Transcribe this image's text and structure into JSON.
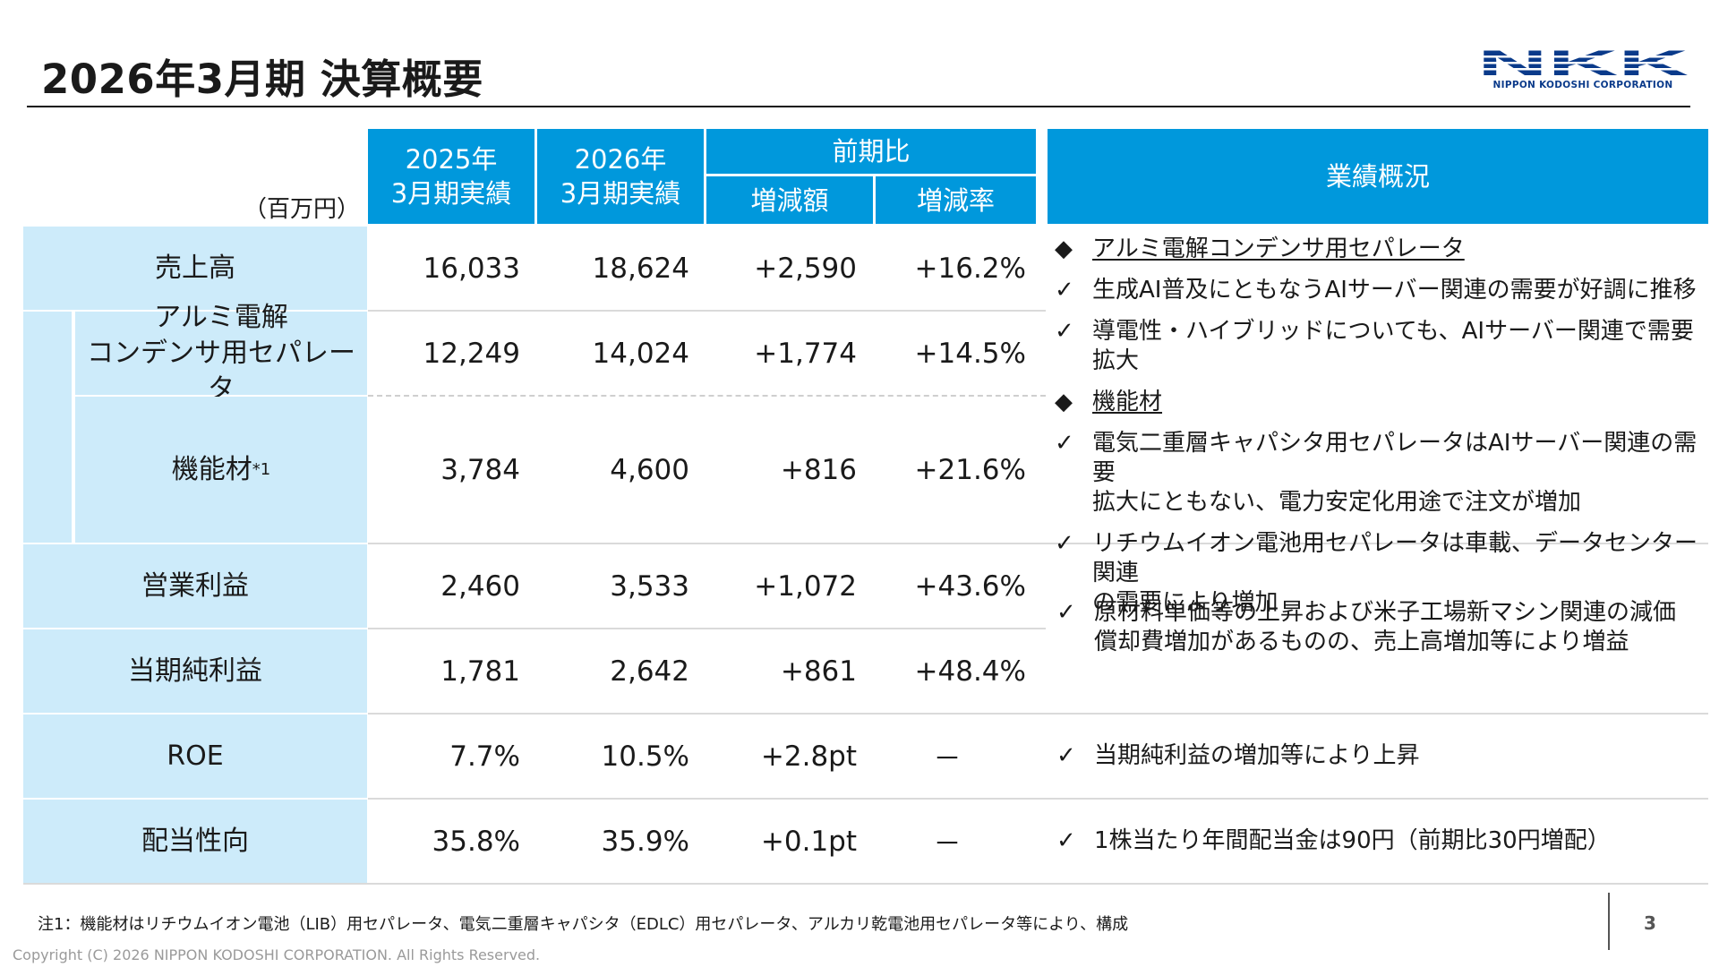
{
  "title": "2026年3月期 決算概要",
  "logo": {
    "mark": "NKK",
    "sub": "NIPPON KODOSHI CORPORATION"
  },
  "unit": "（百万円）",
  "header": {
    "fy2025": "2025年\n3月期実績",
    "fy2026": "2026年\n3月期実績",
    "yoy": "前期比",
    "change": "増減額",
    "rate": "増減率",
    "overview": "業績概況"
  },
  "rows": [
    {
      "label": "売上高",
      "fy2025": "16,033",
      "fy2026": "18,624",
      "change": "+2,590",
      "rate": "+16.2%"
    },
    {
      "label": "アルミ電解\nコンデンサ用セパレータ",
      "fy2025": "12,249",
      "fy2026": "14,024",
      "change": "+1,774",
      "rate": "+14.5%"
    },
    {
      "label": "機能材",
      "label_sup": "*1",
      "fy2025": "3,784",
      "fy2026": "4,600",
      "change": "+816",
      "rate": "+21.6%"
    },
    {
      "label": "営業利益",
      "fy2025": "2,460",
      "fy2026": "3,533",
      "change": "+1,072",
      "rate": "+43.6%"
    },
    {
      "label": "当期純利益",
      "fy2025": "1,781",
      "fy2026": "2,642",
      "change": "+861",
      "rate": "+48.4%"
    },
    {
      "label": "ROE",
      "fy2025": "7.7%",
      "fy2026": "10.5%",
      "change": "+2.8pt",
      "rate": "－"
    },
    {
      "label": "配当性向",
      "fy2025": "35.8%",
      "fy2026": "35.9%",
      "change": "+0.1pt",
      "rate": "－"
    }
  ],
  "markers": {
    "diamond": "◆",
    "check": "✓"
  },
  "overview": {
    "sales_notes": [
      {
        "marker": "diamond",
        "text": "アルミ電解コンデンサ用セパレータ",
        "underline": true
      },
      {
        "marker": "check",
        "text": "生成AI普及にともなうAIサーバー関連の需要が好調に推移"
      },
      {
        "marker": "check",
        "text": "導電性・ハイブリッドについても、AIサーバー関連で需要拡大"
      },
      {
        "marker": "diamond",
        "text": "機能材",
        "underline": true
      },
      {
        "marker": "check",
        "text": "電気二重層キャパシタ用セパレータはAIサーバー関連の需要\n拡大にともない、電力安定化用途で注文が増加"
      },
      {
        "marker": "check",
        "text": "リチウムイオン電池用セパレータは車載、データセンター関連\nの需要により増加"
      }
    ],
    "profit_note": "原材料単価等の上昇および米子工場新マシン関連の減価\n償却費増加があるものの、売上高増加等により増益",
    "roe_note": "当期純利益の増加等により上昇",
    "dividend_note": "1株当たり年間配当金は90円（前期比30円増配）"
  },
  "footnote": "注1：機能材はリチウムイオン電池（LIB）用セパレータ、電気二重層キャパシタ（EDLC）用セパレータ、アルカリ乾電池用セパレータ等により、構成",
  "copyright": "Copyright (C) 2026 NIPPON KODOSHI CORPORATION. All Rights Reserved.",
  "page_number": "3",
  "colors": {
    "header_blue": "#0098dc",
    "label_light_blue": "#cdebfa",
    "logo_blue": "#0a3a8a"
  }
}
